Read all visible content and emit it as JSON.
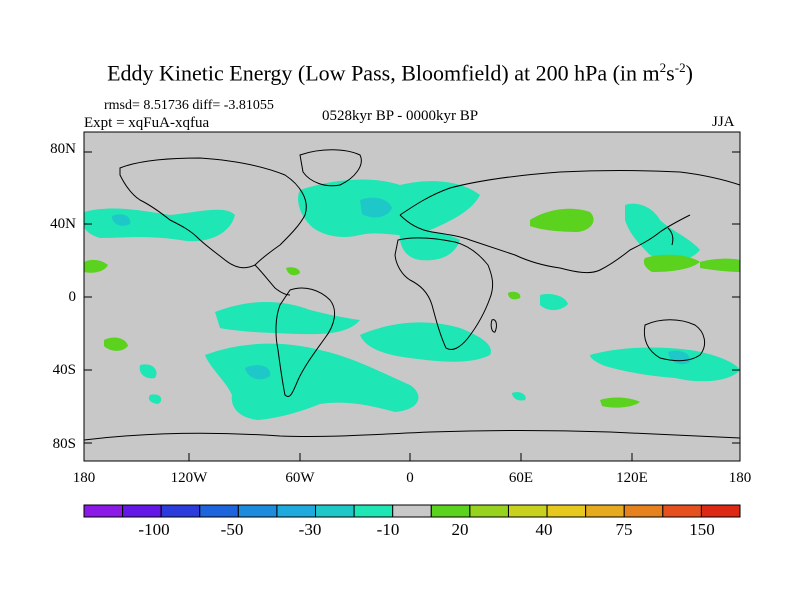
{
  "title_main": "Eddy Kinetic Energy (Low Pass, Bloomfield) at 200 hPa (in m",
  "title_sup1": "2",
  "title_mid": "s",
  "title_sup2": "-2",
  "title_end": ")",
  "rmsd_line": "rmsd= 8.51736 diff= -3.81055",
  "expt_line": "Expt = xqFuA-xqfua",
  "period_line": "0528kyr BP - 0000kyr BP",
  "season": "JJA",
  "lat_labels": [
    "80N",
    "40N",
    "0",
    "40S",
    "80S"
  ],
  "lon_labels": [
    "180",
    "120W",
    "60W",
    "0",
    "60E",
    "120E",
    "180"
  ],
  "colorbar": {
    "colors": [
      "#8c1ae6",
      "#6418e6",
      "#2c3cdc",
      "#1e64dc",
      "#1e8cdc",
      "#1eaadc",
      "#1ec8c8",
      "#1ee6b4",
      "#c8c8c8",
      "#5ad21e",
      "#96d21e",
      "#c8d21e",
      "#e6c81e",
      "#e6aa1e",
      "#e6821e",
      "#e6501e",
      "#dc2814"
    ],
    "labels": [
      "-100",
      "-50",
      "-30",
      "-10",
      "20",
      "40",
      "75",
      "150"
    ]
  },
  "colors": {
    "background": "#c8c8c8",
    "negative": "#1ee6b4",
    "negative_strong": "#1ec8c8",
    "positive": "#5ad21e"
  }
}
